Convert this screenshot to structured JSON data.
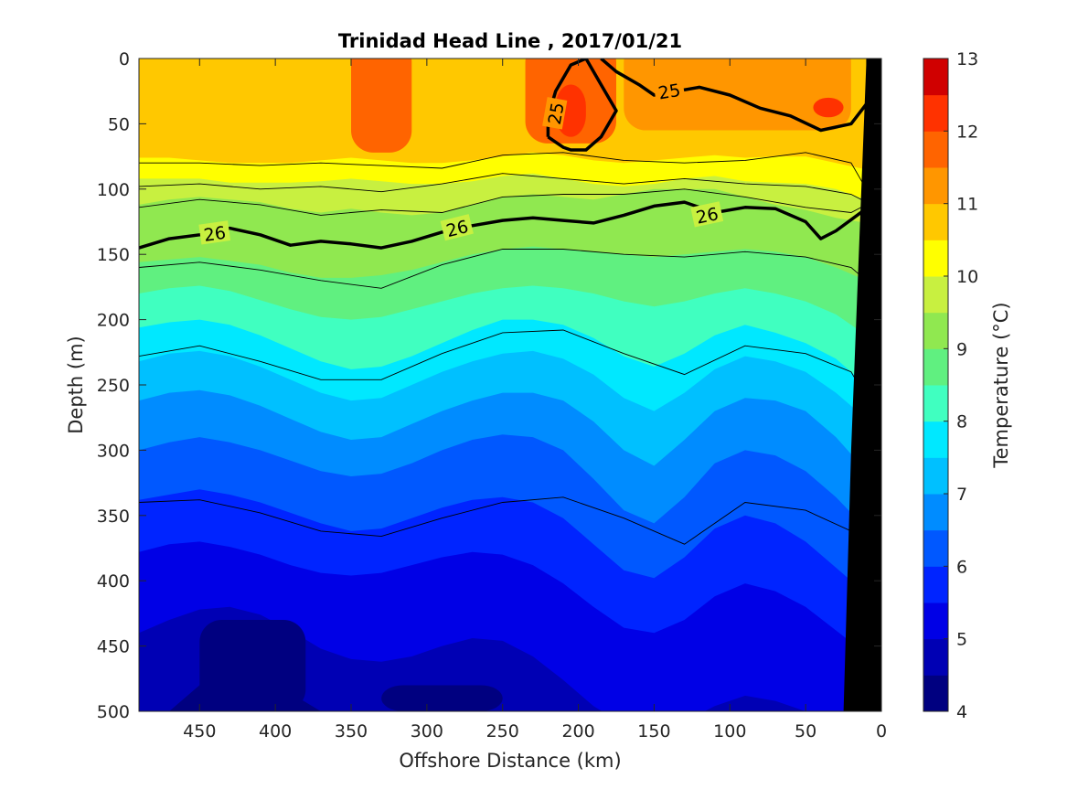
{
  "chart_data": {
    "type": "heatmap",
    "subtype": "filled-contour-section",
    "title": "Trinidad Head Line , 2017/01/21",
    "xlabel": "Offshore Distance (km)",
    "ylabel": "Depth (m)",
    "xlim": [
      490,
      0
    ],
    "ylim": [
      0,
      500
    ],
    "x_reversed": true,
    "y_reversed": true,
    "x_ticks": [
      450,
      400,
      350,
      300,
      250,
      200,
      150,
      100,
      50,
      0
    ],
    "y_ticks": [
      0,
      50,
      100,
      150,
      200,
      250,
      300,
      350,
      400,
      450,
      500
    ],
    "colorbar": {
      "label": "Temperature (°C)",
      "ticks": [
        4,
        5,
        6,
        7,
        8,
        9,
        10,
        11,
        12,
        13
      ],
      "levels": [
        4,
        4.5,
        5,
        5.5,
        6,
        6.5,
        7,
        7.5,
        8,
        8.5,
        9,
        9.5,
        10,
        10.5,
        11,
        11.5,
        12,
        12.5,
        13
      ],
      "colors": [
        "#000080",
        "#0000b4",
        "#0000e6",
        "#0024ff",
        "#0058ff",
        "#008cff",
        "#00c0ff",
        "#00e8ff",
        "#40ffc0",
        "#60f080",
        "#90e850",
        "#c8f040",
        "#ffff00",
        "#ffc800",
        "#ff9600",
        "#ff6400",
        "#ff3200",
        "#d00000"
      ]
    },
    "x": [
      490,
      470,
      450,
      430,
      410,
      390,
      370,
      350,
      330,
      310,
      290,
      270,
      250,
      230,
      210,
      190,
      170,
      150,
      130,
      110,
      90,
      70,
      50,
      30,
      10
    ],
    "depth_interfaces": [
      {
        "t": 10.5,
        "depth": [
          76,
          76,
          78,
          80,
          80,
          80,
          78,
          76,
          78,
          80,
          80,
          78,
          75,
          72,
          74,
          78,
          80,
          78,
          76,
          74,
          76,
          75,
          75,
          80,
          85
        ]
      },
      {
        "t": 10.0,
        "depth": [
          92,
          92,
          92,
          95,
          95,
          95,
          94,
          92,
          94,
          96,
          96,
          94,
          90,
          88,
          92,
          96,
          98,
          96,
          92,
          90,
          94,
          95,
          96,
          100,
          108
        ]
      },
      {
        "t": 9.5,
        "depth": [
          112,
          108,
          106,
          108,
          110,
          115,
          118,
          115,
          118,
          120,
          118,
          112,
          106,
          104,
          106,
          108,
          104,
          100,
          100,
          100,
          106,
          112,
          116,
          122,
          126
        ]
      },
      {
        "t": 9.0,
        "depth": [
          156,
          154,
          152,
          155,
          158,
          164,
          168,
          168,
          166,
          162,
          156,
          150,
          146,
          144,
          146,
          148,
          150,
          152,
          150,
          148,
          146,
          148,
          152,
          160,
          170
        ]
      },
      {
        "t": 8.5,
        "depth": [
          180,
          176,
          174,
          178,
          185,
          192,
          198,
          200,
          198,
          192,
          186,
          180,
          176,
          174,
          176,
          180,
          186,
          190,
          186,
          180,
          176,
          180,
          186,
          196,
          212
        ]
      },
      {
        "t": 8.0,
        "depth": [
          206,
          202,
          200,
          204,
          212,
          222,
          232,
          238,
          236,
          228,
          218,
          208,
          200,
          200,
          204,
          214,
          228,
          236,
          226,
          212,
          204,
          210,
          218,
          230,
          250
        ]
      },
      {
        "t": 7.5,
        "depth": [
          232,
          226,
          224,
          228,
          236,
          246,
          256,
          262,
          260,
          250,
          240,
          232,
          226,
          224,
          230,
          242,
          260,
          270,
          256,
          238,
          228,
          232,
          240,
          256,
          276
        ]
      },
      {
        "t": 7.0,
        "depth": [
          262,
          256,
          254,
          258,
          266,
          276,
          286,
          292,
          290,
          280,
          270,
          262,
          256,
          256,
          262,
          278,
          300,
          312,
          292,
          270,
          260,
          262,
          270,
          290,
          316
        ]
      },
      {
        "t": 6.5,
        "depth": [
          300,
          294,
          290,
          294,
          300,
          308,
          316,
          320,
          318,
          310,
          300,
          292,
          288,
          290,
          300,
          322,
          346,
          356,
          336,
          310,
          300,
          304,
          316,
          336,
          360
        ]
      },
      {
        "t": 6.0,
        "depth": [
          338,
          334,
          330,
          334,
          340,
          348,
          356,
          362,
          360,
          352,
          344,
          338,
          336,
          340,
          352,
          372,
          392,
          398,
          382,
          360,
          350,
          356,
          370,
          390,
          410
        ]
      },
      {
        "t": 5.5,
        "depth": [
          378,
          372,
          370,
          374,
          380,
          388,
          394,
          396,
          394,
          388,
          382,
          378,
          380,
          388,
          402,
          420,
          436,
          440,
          430,
          412,
          402,
          408,
          420,
          438,
          456
        ]
      },
      {
        "t": 5.0,
        "depth": [
          440,
          430,
          422,
          420,
          426,
          438,
          452,
          460,
          462,
          458,
          450,
          444,
          446,
          458,
          476,
          496,
          510,
          514,
          508,
          496,
          488,
          492,
          500,
          510,
          520
        ]
      },
      {
        "t": 4.5,
        "depth": [
          520,
          500,
          480,
          470,
          474,
          486,
          500,
          506,
          508,
          506,
          502,
          498,
          504,
          520,
          540,
          560,
          570,
          572,
          566,
          554,
          548,
          552,
          560,
          570,
          580
        ]
      }
    ],
    "warm_cores_above_11": [
      {
        "x_range": [
          350,
          310
        ],
        "depth_range": [
          0,
          72
        ],
        "t": 11.5
      },
      {
        "x_range": [
          235,
          175
        ],
        "depth_range": [
          0,
          65
        ],
        "t": 11.5
      },
      {
        "x_range": [
          170,
          20
        ],
        "depth_range": [
          0,
          55
        ],
        "t": 11.0
      },
      {
        "x_range": [
          215,
          195
        ],
        "depth_range": [
          20,
          60
        ],
        "t": 12.0
      },
      {
        "x_range": [
          45,
          25
        ],
        "depth_range": [
          30,
          45
        ],
        "t": 12.0
      }
    ],
    "cold_cores": [
      {
        "x_range": [
          450,
          380
        ],
        "depth_range": [
          430,
          500
        ],
        "t": 4.3
      },
      {
        "x_range": [
          330,
          250
        ],
        "depth_range": [
          480,
          500
        ],
        "t": 4.3
      }
    ],
    "density_contours": [
      {
        "label": "25",
        "x": [
          220,
          220,
          215,
          205,
          195,
          185,
          175,
          185,
          195,
          205,
          210,
          215,
          220
        ],
        "depth": [
          60,
          45,
          25,
          5,
          0,
          20,
          40,
          60,
          70,
          70,
          68,
          64,
          60
        ]
      },
      {
        "label": "25",
        "x": [
          185,
          175,
          160,
          150,
          120,
          100,
          80,
          60,
          40,
          20,
          10
        ],
        "depth": [
          0,
          10,
          20,
          28,
          22,
          28,
          38,
          44,
          55,
          50,
          35
        ]
      },
      {
        "label": "26",
        "x": [
          490,
          470,
          450,
          430,
          410,
          390,
          370,
          350,
          330,
          310,
          290,
          270,
          250,
          230,
          210,
          190,
          170,
          150,
          130,
          110,
          90,
          70,
          50,
          40,
          30,
          10
        ],
        "depth": [
          145,
          138,
          135,
          130,
          135,
          143,
          140,
          142,
          145,
          140,
          133,
          128,
          124,
          122,
          124,
          126,
          120,
          113,
          110,
          118,
          114,
          115,
          125,
          138,
          132,
          115
        ]
      }
    ],
    "thin_contours": [
      {
        "x": [
          490,
          450,
          410,
          370,
          330,
          290,
          250,
          210,
          170,
          130,
          90,
          50,
          20,
          10
        ],
        "depth": [
          80,
          80,
          82,
          80,
          82,
          84,
          74,
          72,
          78,
          80,
          78,
          72,
          80,
          100
        ]
      },
      {
        "x": [
          490,
          450,
          410,
          370,
          330,
          290,
          250,
          210,
          170,
          130,
          90,
          50,
          20,
          10
        ],
        "depth": [
          98,
          96,
          100,
          98,
          102,
          96,
          88,
          92,
          96,
          92,
          96,
          98,
          104,
          110
        ]
      },
      {
        "x": [
          490,
          450,
          410,
          370,
          330,
          290,
          250,
          210,
          170,
          130,
          90,
          50,
          20,
          10
        ],
        "depth": [
          114,
          108,
          112,
          120,
          116,
          118,
          106,
          104,
          104,
          100,
          106,
          114,
          118,
          112
        ]
      },
      {
        "x": [
          490,
          450,
          410,
          370,
          330,
          290,
          250,
          210,
          170,
          130,
          90,
          50,
          20,
          10
        ],
        "depth": [
          160,
          156,
          162,
          170,
          176,
          158,
          146,
          146,
          150,
          152,
          148,
          152,
          160,
          170
        ]
      },
      {
        "x": [
          490,
          450,
          410,
          370,
          330,
          290,
          250,
          210,
          170,
          130,
          90,
          50,
          20,
          10
        ],
        "depth": [
          228,
          220,
          232,
          246,
          246,
          226,
          210,
          208,
          226,
          242,
          220,
          226,
          240,
          260
        ]
      },
      {
        "x": [
          490,
          450,
          410,
          370,
          330,
          290,
          250,
          210,
          170,
          130,
          90,
          50,
          20,
          10
        ],
        "depth": [
          340,
          338,
          348,
          362,
          366,
          352,
          340,
          336,
          352,
          372,
          340,
          346,
          362,
          382
        ]
      }
    ],
    "bottom_mask": {
      "x": [
        10,
        20,
        25,
        10
      ],
      "depth": [
        5,
        300,
        500,
        500
      ]
    }
  }
}
